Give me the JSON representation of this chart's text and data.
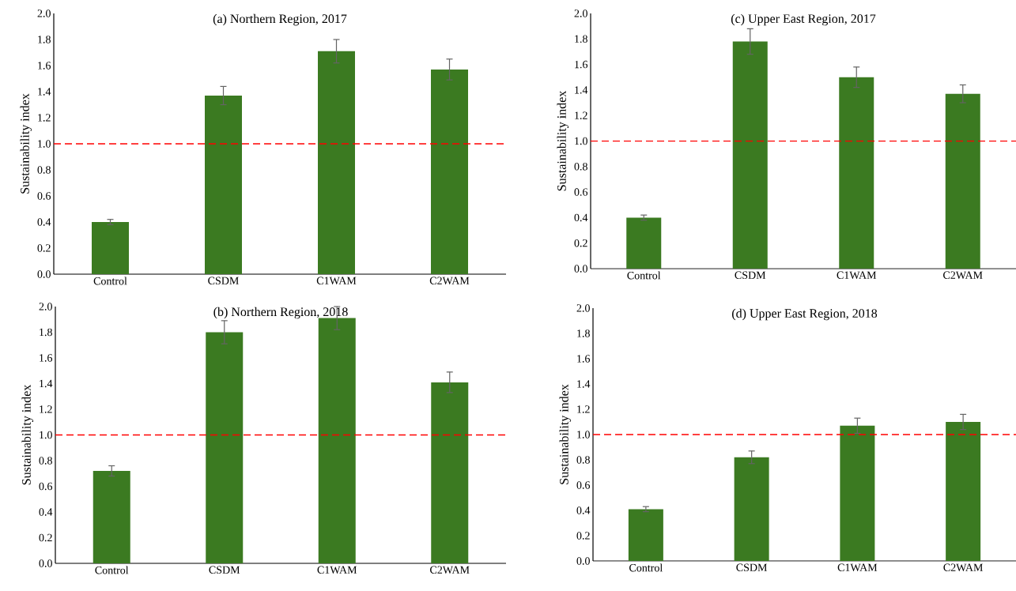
{
  "chart_data": [
    {
      "type": "bar",
      "title": "(a) Northern Region, 2017",
      "ylabel": "Sustainability index",
      "categories": [
        "Control",
        "CSDM",
        "C1WAM",
        "C2WAM"
      ],
      "values": [
        0.4,
        1.37,
        1.71,
        1.57
      ],
      "errors": [
        0.02,
        0.07,
        0.09,
        0.08
      ],
      "color": "#3b7a21",
      "ylim": [
        0,
        2
      ],
      "yticks": [
        {
          "value": 0,
          "label": "0.0"
        },
        {
          "value": 0.2,
          "label": "0.2"
        },
        {
          "value": 0.4,
          "label": "0.4"
        },
        {
          "value": 0.6,
          "label": "0.6"
        },
        {
          "value": 0.8,
          "label": "0.8"
        },
        {
          "value": 1.0,
          "label": "1.0"
        },
        {
          "value": 1.2,
          "label": "1.2"
        },
        {
          "value": 1.4,
          "label": "1.4"
        },
        {
          "value": 1.6,
          "label": "1.6"
        },
        {
          "value": 1.8,
          "label": "1.8"
        },
        {
          "value": 2.0,
          "label": "2.0"
        }
      ],
      "ref_lines": [
        {
          "axis": "y",
          "value": 1.0,
          "color": "#ff0000",
          "line_style": "dashed"
        }
      ]
    },
    {
      "type": "bar",
      "title": "(c) Upper East Region, 2017",
      "ylabel": "Sustainability index",
      "categories": [
        "Control",
        "CSDM",
        "C1WAM",
        "C2WAM"
      ],
      "values": [
        0.4,
        1.78,
        1.5,
        1.37
      ],
      "errors": [
        0.02,
        0.1,
        0.08,
        0.07
      ],
      "color": "#3b7a21",
      "ylim": [
        0,
        2
      ],
      "yticks": [
        {
          "value": 0,
          "label": "0.0"
        },
        {
          "value": 0.2,
          "label": "0.2"
        },
        {
          "value": 0.4,
          "label": "0.4"
        },
        {
          "value": 0.6,
          "label": "0.6"
        },
        {
          "value": 0.8,
          "label": "0.8"
        },
        {
          "value": 1.0,
          "label": "1.0"
        },
        {
          "value": 1.2,
          "label": "1.2"
        },
        {
          "value": 1.4,
          "label": "1.4"
        },
        {
          "value": 1.6,
          "label": "1.6"
        },
        {
          "value": 1.8,
          "label": "1.8"
        },
        {
          "value": 2.0,
          "label": "2.0"
        }
      ],
      "ref_lines": [
        {
          "axis": "y",
          "value": 1.0,
          "color": "#ff0000",
          "line_style": "dashed"
        }
      ]
    },
    {
      "type": "bar",
      "title": "(b) Northern Region, 2018",
      "ylabel": "Sustainability index",
      "categories": [
        "Control",
        "CSDM",
        "C1WAM",
        "C2WAM"
      ],
      "values": [
        0.72,
        1.8,
        1.91,
        1.41
      ],
      "errors": [
        0.04,
        0.09,
        0.09,
        0.08
      ],
      "color": "#3b7a21",
      "ylim": [
        0,
        2
      ],
      "yticks": [
        {
          "value": 0,
          "label": "0.0"
        },
        {
          "value": 0.2,
          "label": "0.2"
        },
        {
          "value": 0.4,
          "label": "0.4"
        },
        {
          "value": 0.6,
          "label": "0.6"
        },
        {
          "value": 0.8,
          "label": "0.8"
        },
        {
          "value": 1.0,
          "label": "1.0"
        },
        {
          "value": 1.2,
          "label": "1.2"
        },
        {
          "value": 1.4,
          "label": "1.4"
        },
        {
          "value": 1.6,
          "label": "1.6"
        },
        {
          "value": 1.8,
          "label": "1.8"
        },
        {
          "value": 2.0,
          "label": "2.0"
        }
      ],
      "ref_lines": [
        {
          "axis": "y",
          "value": 1.0,
          "color": "#ff0000",
          "line_style": "dashed"
        }
      ]
    },
    {
      "type": "bar",
      "title": "(d) Upper East Region, 2018",
      "ylabel": "Sustainability index",
      "categories": [
        "Control",
        "CSDM",
        "C1WAM",
        "C2WAM"
      ],
      "values": [
        0.41,
        0.82,
        1.07,
        1.1
      ],
      "errors": [
        0.02,
        0.05,
        0.06,
        0.06
      ],
      "color": "#3b7a21",
      "ylim": [
        0,
        2
      ],
      "yticks": [
        {
          "value": 0,
          "label": "0.0"
        },
        {
          "value": 0.2,
          "label": "0.2"
        },
        {
          "value": 0.4,
          "label": "0.4"
        },
        {
          "value": 0.6,
          "label": "0.6"
        },
        {
          "value": 0.8,
          "label": "0.8"
        },
        {
          "value": 1.0,
          "label": "1.0"
        },
        {
          "value": 1.2,
          "label": "1.2"
        },
        {
          "value": 1.4,
          "label": "1.4"
        },
        {
          "value": 1.6,
          "label": "1.6"
        },
        {
          "value": 1.8,
          "label": "1.8"
        },
        {
          "value": 2.0,
          "label": "2.0"
        }
      ],
      "ref_lines": [
        {
          "axis": "y",
          "value": 1.0,
          "color": "#ff0000",
          "line_style": "dashed"
        }
      ]
    }
  ]
}
